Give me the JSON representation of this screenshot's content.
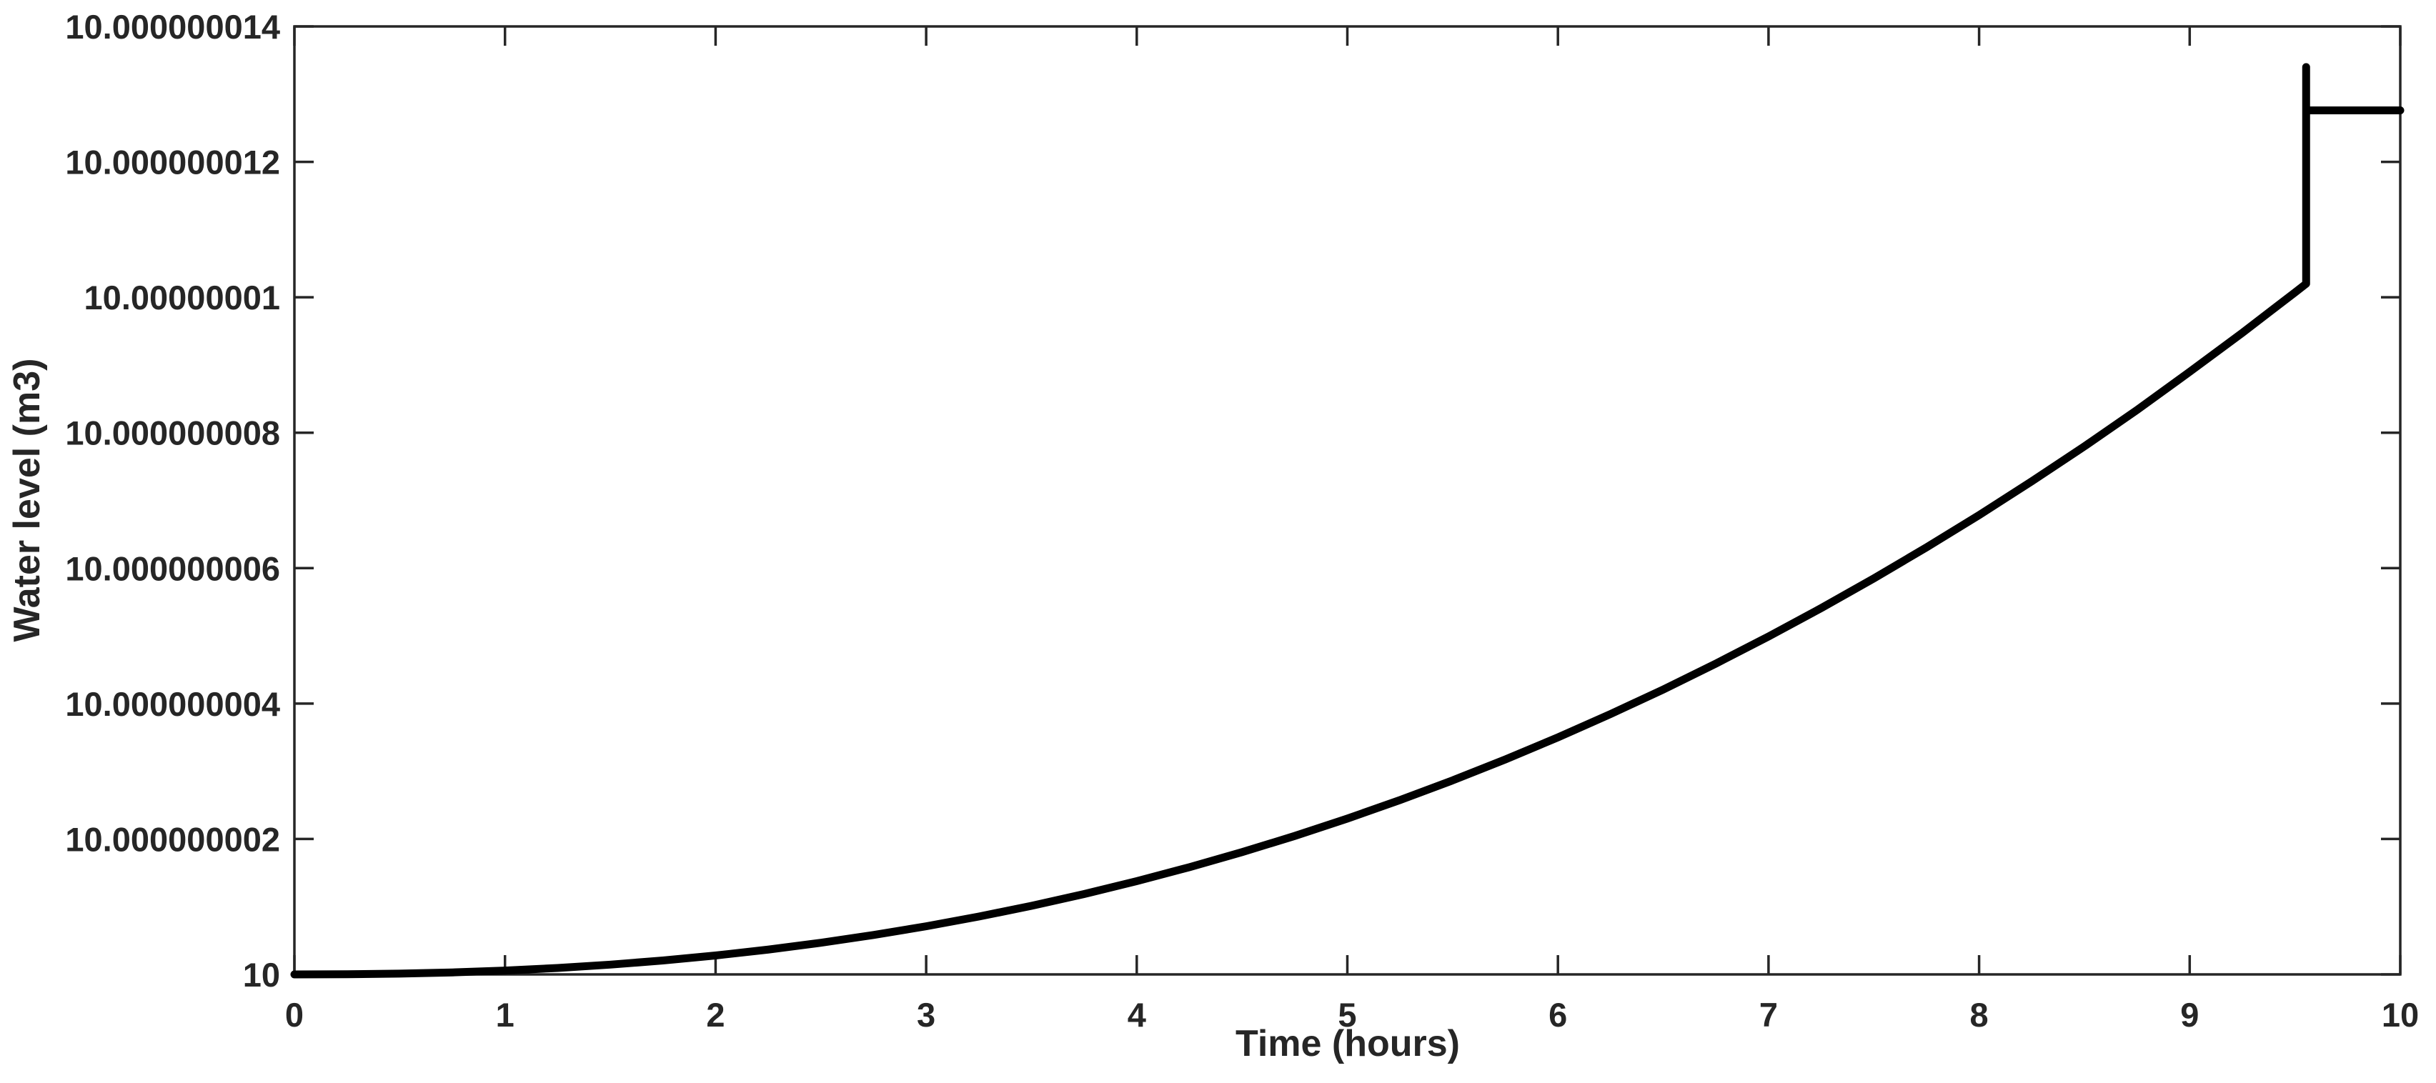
{
  "figure": {
    "background_color": "#ffffff",
    "axis_color": "#262626",
    "text_color": "#262626",
    "curve_color": "#000000"
  },
  "chart_data": {
    "type": "line",
    "title": "",
    "xlabel": "Time (hours)",
    "ylabel": "Water level (m3)",
    "xlim": [
      0,
      10
    ],
    "ylim": [
      10,
      10.000000014
    ],
    "x_ticks": [
      0,
      1,
      2,
      3,
      4,
      5,
      6,
      7,
      8,
      9,
      10
    ],
    "x_tick_labels": [
      "0",
      "1",
      "2",
      "3",
      "4",
      "5",
      "6",
      "7",
      "8",
      "9",
      "10"
    ],
    "y_ticks": [
      10,
      10.000000002,
      10.000000004,
      10.000000006,
      10.000000008,
      10.00000001,
      10.000000012,
      10.000000014
    ],
    "y_tick_labels": [
      "10",
      "10.000000002",
      "10.000000004",
      "10.000000006",
      "10.000000008",
      "10.00000001",
      "10.000000012",
      "10.000000014"
    ],
    "grid": false,
    "legend": "none",
    "tick_direction": "in",
    "box": true,
    "series": [
      {
        "name": "water level",
        "color": "#000000",
        "line_width": 11,
        "x": [
          0,
          0.25,
          0.5,
          0.75,
          1,
          1.25,
          1.5,
          1.75,
          2,
          2.25,
          2.5,
          2.75,
          3,
          3.25,
          3.5,
          3.75,
          4,
          4.25,
          4.5,
          4.75,
          5,
          5.25,
          5.5,
          5.75,
          6,
          6.25,
          6.5,
          6.75,
          7,
          7.25,
          7.5,
          7.75,
          8,
          8.25,
          8.5,
          8.75,
          9,
          9.25,
          9.5,
          9.553,
          9.553,
          9.553,
          10
        ],
        "y": [
          10,
          10.0000000000023,
          10.0000000000115,
          10.0000000000293,
          10.0000000000568,
          10.0000000000949,
          10.0000000001443,
          10.0000000002057,
          10.0000000002797,
          10.0000000003668,
          10.0000000004676,
          10.0000000005819,
          10.0000000007108,
          10.0000000008544,
          10.0000000010127,
          10.0000000011871,
          10.0000000013776,
          10.0000000015836,
          10.0000000018057,
          10.0000000020448,
          10.0000000023014,
          10.0000000025748,
          10.0000000028656,
          10.0000000031746,
          10.0000000035006,
          10.0000000038454,
          10.0000000042072,
          10.00000000459,
          10.0000000049904,
          10.0000000054096,
          10.0000000058481,
          10.0000000063065,
          10.0000000067836,
          10.0000000072818,
          10.0000000077981,
          10.000000008336,
          10.0000000088994,
          10.0000000094748,
          10.0000000100718,
          10.0000000102,
          10.0000000134,
          10.00000001276,
          10.00000001276
        ]
      }
    ]
  }
}
